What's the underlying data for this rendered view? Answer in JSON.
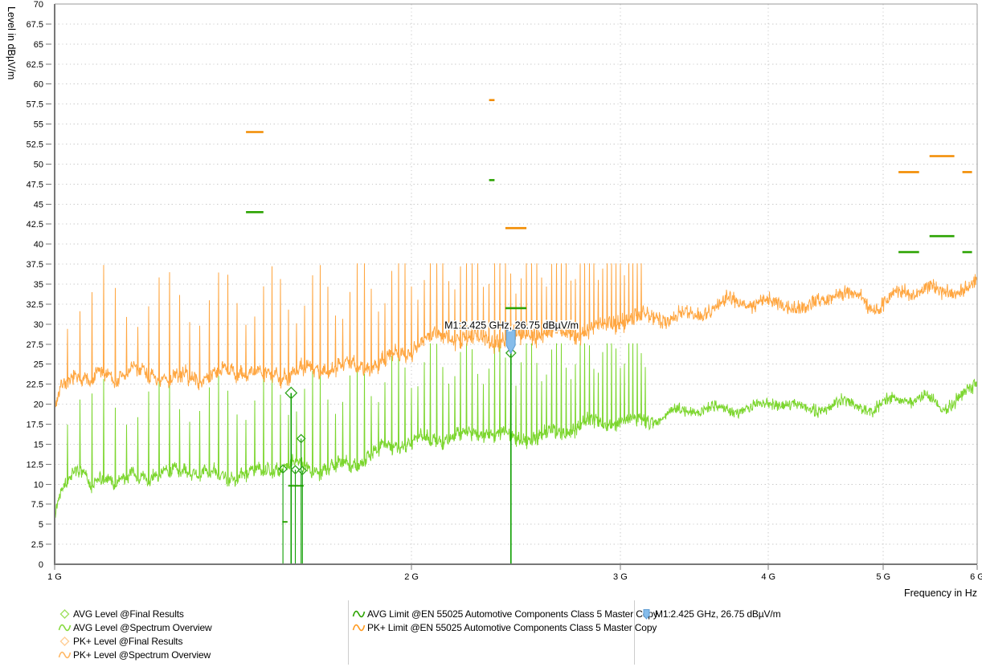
{
  "chart": {
    "y_axis": {
      "title": "Level in dBµV/m",
      "unit": "dBµV/m",
      "min": 0,
      "max": 70,
      "step": 2.5
    },
    "x_axis": {
      "title": "Frequency in Hz",
      "scale": "log",
      "min_ghz": 1,
      "max_ghz": 6,
      "ticks": [
        {
          "f": 1,
          "label": "1 G"
        },
        {
          "f": 2,
          "label": "2 G"
        },
        {
          "f": 3,
          "label": "3 G"
        },
        {
          "f": 4,
          "label": "4 G"
        },
        {
          "f": 5,
          "label": "5 G"
        },
        {
          "f": 6,
          "label": "6 G"
        }
      ]
    },
    "colors": {
      "grid": "#c9c9c9",
      "axis": "#787878",
      "border": "#9a9a9a",
      "text": "#000000"
    }
  },
  "chart_data": {
    "type": "line",
    "title": "",
    "xlabel": "Frequency in Hz",
    "ylabel": "Level in dBµV/m",
    "ylim": [
      0,
      70
    ],
    "xlim_ghz": [
      1,
      6
    ],
    "grid": true,
    "legend_position": "bottom",
    "series": [
      {
        "name": "PK+ Level @Spectrum Overview",
        "color": "#FFA640",
        "kind": "noisy-trace",
        "envelope_f_ghz": [
          1,
          1.02,
          1.05,
          1.07,
          1.1,
          1.13,
          1.16,
          1.2,
          1.25,
          1.3,
          1.35,
          1.4,
          1.45,
          1.5,
          1.55,
          1.6,
          1.65,
          1.7,
          1.8,
          1.9,
          2,
          2.05,
          2.1,
          2.15,
          2.2,
          2.3,
          2.4,
          2.45,
          2.5,
          2.6,
          2.7,
          2.8,
          2.9,
          3,
          3.1,
          3.2,
          3.3,
          3.4,
          3.5,
          3.6,
          3.7,
          3.8,
          3.9,
          4,
          4.1,
          4.2,
          4.3,
          4.4,
          4.5,
          4.6,
          4.7,
          4.8,
          4.9,
          5,
          5.1,
          5.2,
          5.3,
          5.4,
          5.5,
          5.6,
          5.7,
          5.8,
          5.9,
          6
        ],
        "envelope_db": [
          19.5,
          23.2,
          24.1,
          22.3,
          23.9,
          22.9,
          23.6,
          23.6,
          23.2,
          23.6,
          23.1,
          23.5,
          23.8,
          23.6,
          23.9,
          24.1,
          23.9,
          24.1,
          24.6,
          25.6,
          26.6,
          27.5,
          28,
          28.3,
          28,
          28.3,
          28,
          27.8,
          28.2,
          28.6,
          28.8,
          29.3,
          29.5,
          30,
          30.3,
          30.8,
          31,
          31.3,
          31.5,
          32,
          32.3,
          32.5,
          32.5,
          32.8,
          33,
          32.5,
          31.8,
          32.5,
          33.2,
          33.5,
          33.5,
          33.2,
          32.3,
          32.8,
          33.8,
          34,
          34,
          34.2,
          34,
          33.2,
          34,
          34.5,
          34.8,
          35.5
        ]
      },
      {
        "name": "AVG Level @Spectrum Overview",
        "color": "#7CD62E",
        "kind": "noisy-trace",
        "envelope_f_ghz": [
          1,
          1.02,
          1.05,
          1.07,
          1.1,
          1.13,
          1.16,
          1.2,
          1.25,
          1.3,
          1.35,
          1.4,
          1.45,
          1.5,
          1.55,
          1.6,
          1.65,
          1.7,
          1.8,
          1.9,
          2,
          2.05,
          2.1,
          2.15,
          2.2,
          2.3,
          2.4,
          2.45,
          2.5,
          2.6,
          2.7,
          2.8,
          2.9,
          3,
          3.1,
          3.2,
          3.3,
          3.4,
          3.5,
          3.6,
          3.7,
          3.8,
          3.9,
          4,
          4.1,
          4.2,
          4.3,
          4.4,
          4.5,
          4.6,
          4.7,
          4.8,
          4.9,
          5,
          5.1,
          5.2,
          5.3,
          5.4,
          5.5,
          5.6,
          5.7,
          5.8,
          5.9,
          6
        ],
        "envelope_db": [
          6.8,
          10.6,
          11.3,
          8.9,
          11.1,
          10.2,
          11,
          11.3,
          11,
          11.3,
          10.9,
          11.2,
          11.4,
          11.5,
          11.7,
          12,
          11.8,
          12.1,
          12.8,
          14,
          15.1,
          15.5,
          15.8,
          16,
          15.8,
          16,
          15.8,
          15.5,
          16,
          16.3,
          16.5,
          17,
          17.3,
          17.8,
          18,
          18.3,
          18.5,
          18.8,
          19,
          19.3,
          19.5,
          19.7,
          19.7,
          20,
          20,
          19.5,
          18.8,
          19.5,
          20,
          20.3,
          20.3,
          20,
          19,
          19.5,
          20.3,
          20.5,
          20.5,
          20.7,
          20.5,
          19.8,
          20.5,
          21,
          21.3,
          22
        ]
      }
    ],
    "spikes": {
      "interval_ghz": 0.025,
      "first_ghz": 1.025,
      "last_ghz_pk": 3.13,
      "last_ghz_avg": 3.17,
      "max_pk_db": 37.6,
      "max_avg_db": 27.6
    },
    "limits": [
      {
        "name": "PK+ Limit @EN 55025 Automotive Components Class 5 Master Copy",
        "color": "#F28C00",
        "segments_ghz_db": [
          [
            1.45,
            1.5,
            54
          ],
          [
            2.325,
            2.35,
            58
          ],
          [
            2.4,
            2.5,
            42
          ],
          [
            5.15,
            5.36,
            49
          ],
          [
            5.47,
            5.74,
            51
          ],
          [
            5.83,
            5.94,
            49
          ]
        ]
      },
      {
        "name": "AVG Limit @EN 55025 Automotive Components Class 5 Master Copy",
        "color": "#2BA300",
        "segments_ghz_db": [
          [
            1.45,
            1.5,
            44
          ],
          [
            2.325,
            2.35,
            48
          ],
          [
            2.4,
            2.5,
            32
          ],
          [
            5.15,
            5.36,
            39
          ],
          [
            5.47,
            5.74,
            41
          ],
          [
            5.83,
            5.94,
            39
          ],
          [
            1.556,
            1.572,
            5.3
          ],
          [
            1.574,
            1.622,
            9.8
          ]
        ]
      }
    ],
    "final_results": {
      "name": "AVG Level @Final Results",
      "bar_color": "#0D9E00",
      "diamond_color": "#2FA51A",
      "points_ghz_db_r": [
        [
          1.558,
          11.9,
          5
        ],
        [
          1.583,
          21.4,
          7
        ],
        [
          1.596,
          11.8,
          5
        ],
        [
          1.614,
          15.7,
          5
        ],
        [
          1.618,
          11.7,
          5
        ],
        [
          2.426,
          26.4,
          6
        ]
      ]
    },
    "marker": {
      "id": "M1",
      "label": "M1:2.425 GHz, 26.75 dBµV/m",
      "freq_ghz": 2.425,
      "level_db": 26.75,
      "fill": "#86BCEA",
      "stroke": "#5D9CD3"
    }
  },
  "legend": {
    "columns": [
      [
        {
          "icon": "diamond",
          "color": "#9FE060",
          "label": "AVG Level @Final Results"
        },
        {
          "icon": "sine",
          "color": "#86D93E",
          "label": "AVG Level @Spectrum Overview"
        },
        {
          "icon": "diamond",
          "color": "#FFCE96",
          "label": "PK+ Level @Final Results"
        },
        {
          "icon": "sine",
          "color": "#FFB763",
          "label": "PK+ Level @Spectrum Overview"
        }
      ],
      [
        {
          "icon": "sine",
          "color": "#2BA300",
          "label": "AVG Limit @EN 55025 Automotive Components Class 5 Master Copy"
        },
        {
          "icon": "sine",
          "color": "#FF9A1E",
          "label": "PK+ Limit @EN 55025 Automotive Components Class 5 Master Copy"
        }
      ],
      [
        {
          "icon": "marker",
          "color": "#86BCEA",
          "label": "M1:2.425 GHz, 26.75 dBµV/m"
        }
      ]
    ]
  }
}
